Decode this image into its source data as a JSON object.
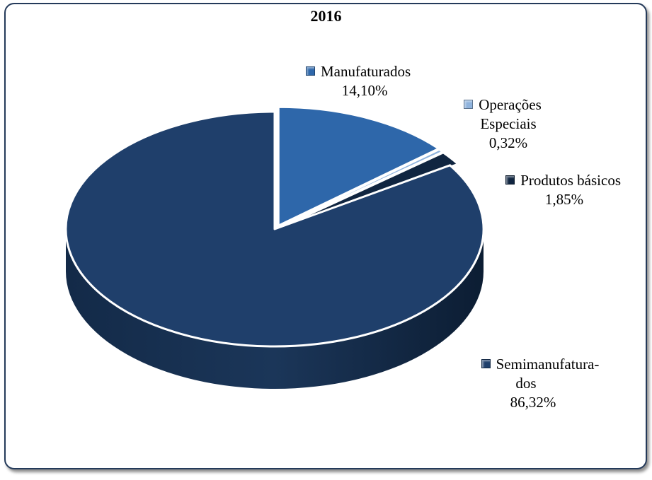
{
  "chart_data": {
    "type": "pie",
    "title": "2016",
    "slices": [
      {
        "name": "Manufaturados",
        "label_lines": [
          "Manufaturados"
        ],
        "value_label": "14,10%",
        "value": 14.1,
        "color": "#2e67aa"
      },
      {
        "name": "Operações Especiais",
        "label_lines": [
          "Operações",
          "Especiais"
        ],
        "value_label": "0,32%",
        "value": 0.32,
        "color": "#8fb3dd"
      },
      {
        "name": "Produtos básicos",
        "label_lines": [
          "Produtos básicos"
        ],
        "value_label": "1,85%",
        "value": 1.85,
        "color": "#102540"
      },
      {
        "name": "Semimanufaturados",
        "label_lines": [
          "Semimanufatura-",
          "dos"
        ],
        "value_label": "86,32%",
        "value": 86.32,
        "color": "#1f3f6b"
      }
    ],
    "legend": "data labels beside slices",
    "style": "3d exploded pie"
  }
}
